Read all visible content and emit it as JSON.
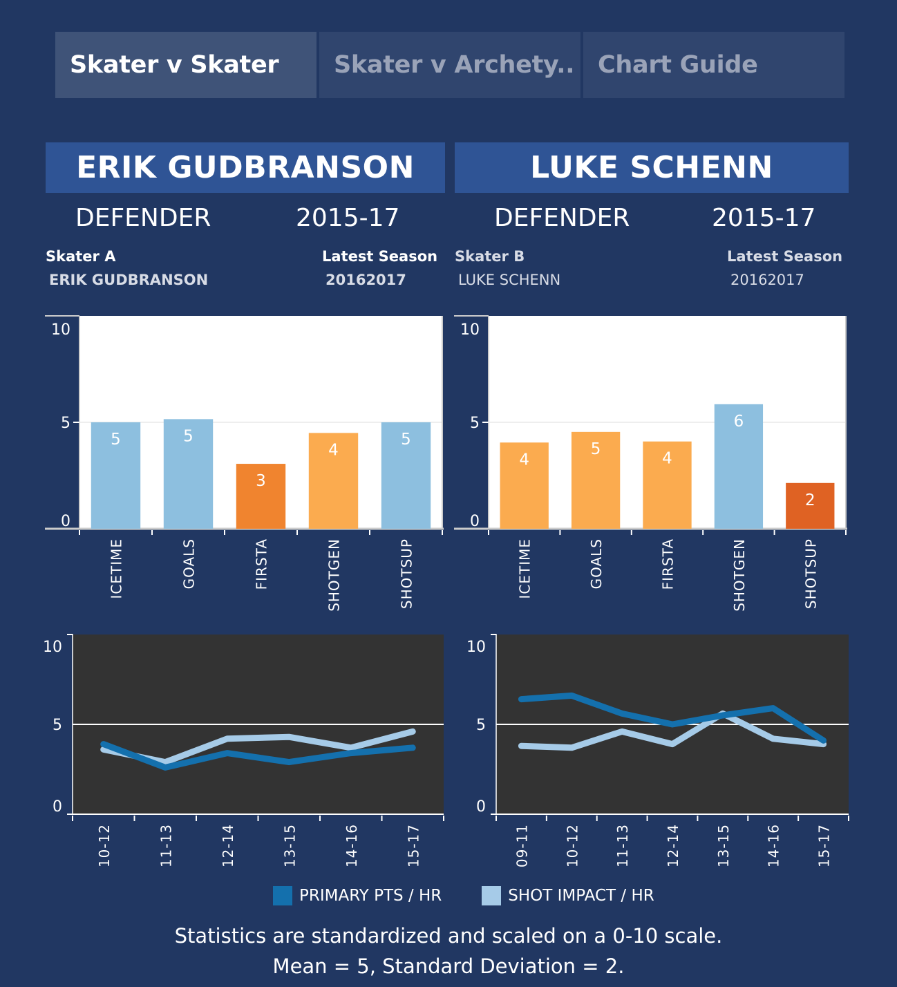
{
  "tabs": [
    {
      "label": "Skater v Skater",
      "active": true
    },
    {
      "label": "Skater v Archety..",
      "active": false
    },
    {
      "label": "Chart Guide",
      "active": false
    }
  ],
  "colors": {
    "background": "#213762",
    "banner": "#2f5495",
    "above_avg": "#8dbfdf",
    "below_avg": "#fbab4f",
    "low": "#f0842f",
    "very_low": "#df6223",
    "primary_pts": "#1470ad",
    "shot_impact": "#a6cbe8",
    "line_bg": "#333333"
  },
  "skater_a": {
    "name": "ERIK GUDBRANSON",
    "position": "DEFENDER",
    "seasons": "2015-17",
    "label": "Skater A",
    "value": "ERIK GUDBRANSON",
    "season_label": "Latest Season",
    "season_value": "20162017"
  },
  "skater_b": {
    "name": "LUKE SCHENN",
    "position": "DEFENDER",
    "seasons": "2015-17",
    "label": "Skater B",
    "value": "LUKE SCHENN",
    "season_label": "Latest Season",
    "season_value": "20162017"
  },
  "legend": {
    "primary": "PRIMARY PTS / HR",
    "shot": "SHOT IMPACT / HR"
  },
  "footnote": {
    "line1": "Statistics are standardized and scaled on a 0-10 scale.",
    "line2": "Mean = 5, Standard Deviation = 2."
  },
  "chart_data": [
    {
      "id": "bar-a",
      "type": "bar",
      "title": "ERIK GUDBRANSON",
      "categories": [
        "ICETIME",
        "GOALS",
        "FIRSTA",
        "SHOTGEN",
        "SHOTSUP"
      ],
      "values": [
        5.0,
        5.15,
        3.05,
        4.5,
        5.0
      ],
      "labels": [
        "5",
        "5",
        "3",
        "4",
        "5"
      ],
      "bar_colors": [
        "#8dbfdf",
        "#8dbfdf",
        "#f0842f",
        "#fbab4f",
        "#8dbfdf"
      ],
      "ylim": [
        0,
        10
      ],
      "yticks": [
        0,
        5,
        10
      ],
      "reference_line": 5,
      "xlabel": "",
      "ylabel": ""
    },
    {
      "id": "bar-b",
      "type": "bar",
      "title": "LUKE SCHENN",
      "categories": [
        "ICETIME",
        "GOALS",
        "FIRSTA",
        "SHOTGEN",
        "SHOTSUP"
      ],
      "values": [
        4.05,
        4.55,
        4.1,
        5.85,
        2.15
      ],
      "labels": [
        "4",
        "5",
        "4",
        "6",
        "2"
      ],
      "bar_colors": [
        "#fbab4f",
        "#fbab4f",
        "#fbab4f",
        "#8dbfdf",
        "#df6223"
      ],
      "ylim": [
        0,
        10
      ],
      "yticks": [
        0,
        5,
        10
      ],
      "reference_line": 5,
      "xlabel": "",
      "ylabel": ""
    },
    {
      "id": "line-a",
      "type": "line",
      "title": "ERIK GUDBRANSON trend",
      "x": [
        "10-12",
        "11-13",
        "12-14",
        "13-15",
        "14-16",
        "15-17"
      ],
      "series": [
        {
          "name": "PRIMARY PTS / HR",
          "color": "#1470ad",
          "values": [
            3.9,
            2.6,
            3.4,
            2.9,
            3.4,
            3.7
          ]
        },
        {
          "name": "SHOT IMPACT / HR",
          "color": "#a6cbe8",
          "values": [
            3.6,
            2.9,
            4.2,
            4.3,
            3.7,
            4.6
          ]
        }
      ],
      "ylim": [
        0,
        10
      ],
      "yticks": [
        0,
        5,
        10
      ],
      "reference_line": 5,
      "legend": "bottom"
    },
    {
      "id": "line-b",
      "type": "line",
      "title": "LUKE SCHENN trend",
      "x": [
        "09-11",
        "10-12",
        "11-13",
        "12-14",
        "13-15",
        "14-16",
        "15-17"
      ],
      "series": [
        {
          "name": "PRIMARY PTS / HR",
          "color": "#1470ad",
          "values": [
            6.4,
            6.6,
            5.6,
            5.0,
            5.5,
            5.9,
            4.1
          ]
        },
        {
          "name": "SHOT IMPACT / HR",
          "color": "#a6cbe8",
          "values": [
            3.8,
            3.7,
            4.6,
            3.9,
            5.6,
            4.2,
            3.9
          ]
        }
      ],
      "ylim": [
        0,
        10
      ],
      "yticks": [
        0,
        5,
        10
      ],
      "reference_line": 5,
      "legend": "bottom"
    }
  ]
}
